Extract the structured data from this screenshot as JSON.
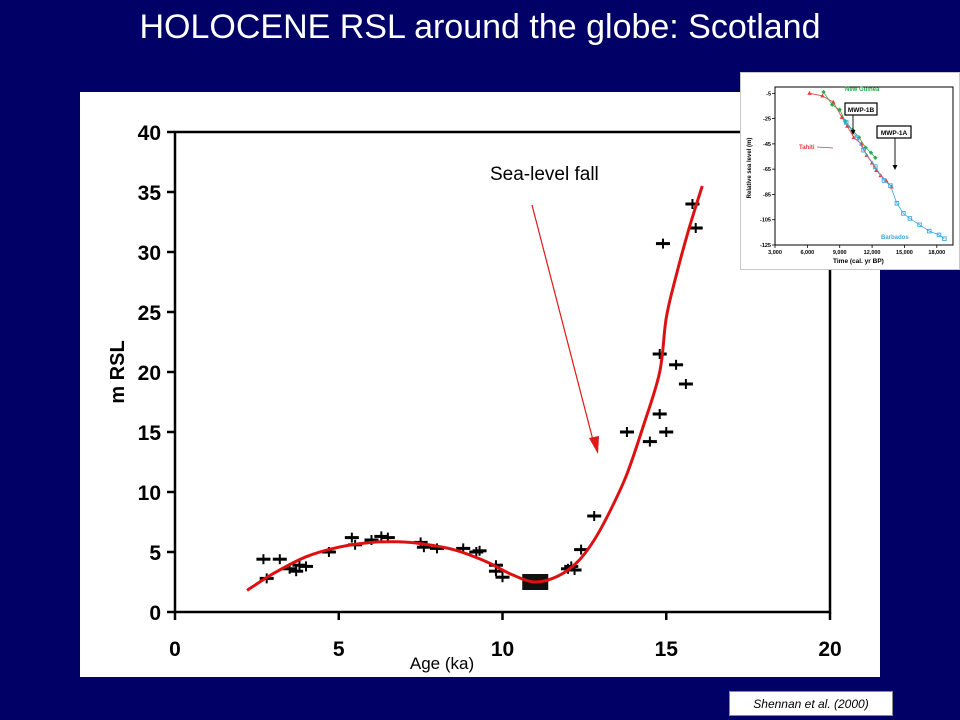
{
  "slide": {
    "title": "HOLOCENE RSL around the globe: Scotland",
    "citation": "Shennan et al. (2000)",
    "annotation": "Sea-level fall"
  },
  "colors": {
    "background": "#000066",
    "curve": "#dd1111",
    "arrow": "#e01818",
    "datapoint": "#000000"
  },
  "chart_data": [
    {
      "type": "scatter",
      "title": "",
      "xlabel": "Age (ka)",
      "ylabel": "m RSL",
      "xlim": [
        0,
        20
      ],
      "ylim": [
        0,
        40
      ],
      "xticks": [
        "0",
        "5",
        "10",
        "15",
        "20"
      ],
      "yticks": [
        "0",
        "5",
        "10",
        "15",
        "20",
        "25",
        "30",
        "35",
        "40"
      ],
      "grid": false,
      "points": [
        {
          "x": 2.7,
          "y": 4.4
        },
        {
          "x": 2.8,
          "y": 2.8
        },
        {
          "x": 3.2,
          "y": 4.4
        },
        {
          "x": 3.5,
          "y": 3.6
        },
        {
          "x": 3.7,
          "y": 3.4
        },
        {
          "x": 3.8,
          "y": 3.9
        },
        {
          "x": 4.0,
          "y": 3.8
        },
        {
          "x": 4.7,
          "y": 5.0
        },
        {
          "x": 5.4,
          "y": 6.2
        },
        {
          "x": 5.5,
          "y": 5.6
        },
        {
          "x": 6.0,
          "y": 6.0
        },
        {
          "x": 6.3,
          "y": 6.3
        },
        {
          "x": 6.5,
          "y": 6.2
        },
        {
          "x": 7.5,
          "y": 5.8
        },
        {
          "x": 7.6,
          "y": 5.4
        },
        {
          "x": 8.0,
          "y": 5.3
        },
        {
          "x": 8.8,
          "y": 5.3
        },
        {
          "x": 9.2,
          "y": 5.0
        },
        {
          "x": 9.3,
          "y": 5.1
        },
        {
          "x": 9.8,
          "y": 3.9
        },
        {
          "x": 9.8,
          "y": 3.4
        },
        {
          "x": 10.0,
          "y": 2.9
        },
        {
          "x": 12.0,
          "y": 3.6
        },
        {
          "x": 12.1,
          "y": 3.8
        },
        {
          "x": 12.2,
          "y": 3.5
        },
        {
          "x": 12.4,
          "y": 5.2
        },
        {
          "x": 12.8,
          "y": 8.0
        },
        {
          "x": 13.8,
          "y": 15.0
        },
        {
          "x": 14.5,
          "y": 14.2
        },
        {
          "x": 14.8,
          "y": 16.5
        },
        {
          "x": 15.0,
          "y": 15.0
        },
        {
          "x": 14.8,
          "y": 21.5
        },
        {
          "x": 15.3,
          "y": 20.6
        },
        {
          "x": 15.6,
          "y": 19.0
        },
        {
          "x": 14.9,
          "y": 30.7
        },
        {
          "x": 15.8,
          "y": 34.0
        },
        {
          "x": 15.9,
          "y": 32.0
        }
      ],
      "highlight_box": {
        "x": 11.0,
        "y": 2.5
      },
      "fitted_curve": [
        [
          2.2,
          1.8
        ],
        [
          3,
          3.2
        ],
        [
          4,
          4.6
        ],
        [
          5,
          5.4
        ],
        [
          6,
          5.8
        ],
        [
          6.8,
          5.85
        ],
        [
          7.5,
          5.7
        ],
        [
          8.5,
          5.2
        ],
        [
          9.5,
          4.2
        ],
        [
          10.3,
          3.1
        ],
        [
          11,
          2.5
        ],
        [
          11.7,
          3.0
        ],
        [
          12.3,
          4.2
        ],
        [
          12.8,
          6.0
        ],
        [
          13.3,
          8.5
        ],
        [
          13.8,
          11.5
        ],
        [
          14.3,
          15.5
        ],
        [
          14.8,
          20.0
        ],
        [
          15.0,
          24.5
        ],
        [
          15.3,
          28.0
        ],
        [
          15.7,
          32.0
        ],
        [
          16.1,
          35.5
        ]
      ]
    },
    {
      "type": "scatter",
      "title": "",
      "xlabel": "Time (cal. yr BP)",
      "ylabel": "Relative sea level (m)",
      "xlim": [
        3000,
        19500
      ],
      "ylim": [
        -125,
        0
      ],
      "xticks": [
        "3,000",
        "6,000",
        "9,000",
        "12,000",
        "15,000",
        "18,000"
      ],
      "yticks": [
        "-5",
        "-25",
        "-45",
        "-65",
        "-85",
        "-105",
        "-125"
      ],
      "labels": [
        "New Guinea",
        "MWP-1B",
        "MWP-1A",
        "Tahiti",
        "Barbados"
      ],
      "series": [
        {
          "name": "Tahiti",
          "color": "#e83a3a",
          "points": [
            [
              6200,
              -5
            ],
            [
              7400,
              -7
            ],
            [
              8400,
              -12
            ],
            [
              9200,
              -24
            ],
            [
              9700,
              -31
            ],
            [
              10300,
              -40
            ],
            [
              11000,
              -45
            ],
            [
              11500,
              -54
            ],
            [
              12000,
              -60
            ],
            [
              12400,
              -66
            ],
            [
              12800,
              -70
            ],
            [
              13300,
              -74
            ],
            [
              13800,
              -79
            ]
          ]
        },
        {
          "name": "New Guinea",
          "color": "#2fa84a",
          "points": [
            [
              7500,
              -4
            ],
            [
              8300,
              -14
            ],
            [
              9000,
              -18
            ],
            [
              9500,
              -27
            ],
            [
              10200,
              -34
            ],
            [
              10800,
              -40
            ],
            [
              11400,
              -48
            ],
            [
              11900,
              -52
            ],
            [
              12300,
              -56
            ]
          ]
        },
        {
          "name": "Barbados",
          "color": "#3da9e0",
          "points": [
            [
              9600,
              -28
            ],
            [
              10600,
              -40
            ],
            [
              11200,
              -50
            ],
            [
              12300,
              -63
            ],
            [
              13100,
              -74
            ],
            [
              13700,
              -78
            ],
            [
              14300,
              -92
            ],
            [
              14900,
              -100
            ],
            [
              15500,
              -104
            ],
            [
              16400,
              -109
            ],
            [
              17300,
              -114
            ],
            [
              18200,
              -117
            ],
            [
              18700,
              -120
            ]
          ]
        }
      ]
    }
  ]
}
